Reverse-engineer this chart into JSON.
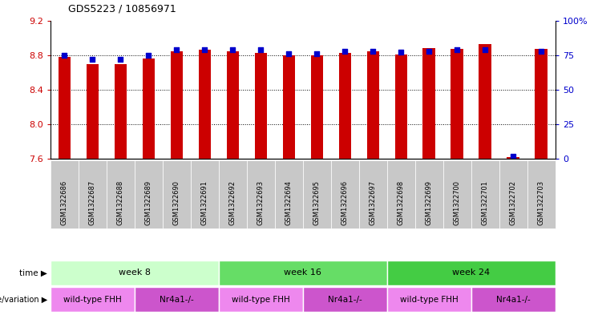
{
  "title": "GDS5223 / 10856971",
  "samples": [
    "GSM1322686",
    "GSM1322687",
    "GSM1322688",
    "GSM1322689",
    "GSM1322690",
    "GSM1322691",
    "GSM1322692",
    "GSM1322693",
    "GSM1322694",
    "GSM1322695",
    "GSM1322696",
    "GSM1322697",
    "GSM1322698",
    "GSM1322699",
    "GSM1322700",
    "GSM1322701",
    "GSM1322702",
    "GSM1322703"
  ],
  "transformed_count": [
    8.78,
    8.7,
    8.7,
    8.76,
    8.84,
    8.86,
    8.84,
    8.83,
    8.8,
    8.8,
    8.83,
    8.84,
    8.81,
    8.88,
    8.87,
    8.93,
    7.62,
    8.87
  ],
  "percentile_rank": [
    75,
    72,
    72,
    75,
    79,
    79,
    79,
    79,
    76,
    76,
    78,
    78,
    77,
    78,
    79,
    79,
    2,
    78
  ],
  "ylim_left": [
    7.6,
    9.2
  ],
  "ylim_right": [
    0,
    100
  ],
  "yticks_left": [
    7.6,
    8.0,
    8.4,
    8.8,
    9.2
  ],
  "yticks_right": [
    0,
    25,
    50,
    75,
    100
  ],
  "bar_color": "#cc0000",
  "dot_color": "#0000cc",
  "bar_bottom": 7.6,
  "time_groups": [
    {
      "label": "week 8",
      "start": 0,
      "end": 6,
      "color": "#ccffcc"
    },
    {
      "label": "week 16",
      "start": 6,
      "end": 12,
      "color": "#66dd66"
    },
    {
      "label": "week 24",
      "start": 12,
      "end": 18,
      "color": "#44cc44"
    }
  ],
  "geno_groups": [
    {
      "label": "wild-type FHH",
      "start": 0,
      "end": 3,
      "color": "#ee88ee"
    },
    {
      "label": "Nr4a1-/-",
      "start": 3,
      "end": 6,
      "color": "#cc55cc"
    },
    {
      "label": "wild-type FHH",
      "start": 6,
      "end": 9,
      "color": "#ee88ee"
    },
    {
      "label": "Nr4a1-/-",
      "start": 9,
      "end": 12,
      "color": "#cc55cc"
    },
    {
      "label": "wild-type FHH",
      "start": 12,
      "end": 15,
      "color": "#ee88ee"
    },
    {
      "label": "Nr4a1-/-",
      "start": 15,
      "end": 18,
      "color": "#cc55cc"
    }
  ],
  "panel_bg": "#c8c8c8",
  "legend_square_red": "#cc0000",
  "legend_square_blue": "#0000cc"
}
